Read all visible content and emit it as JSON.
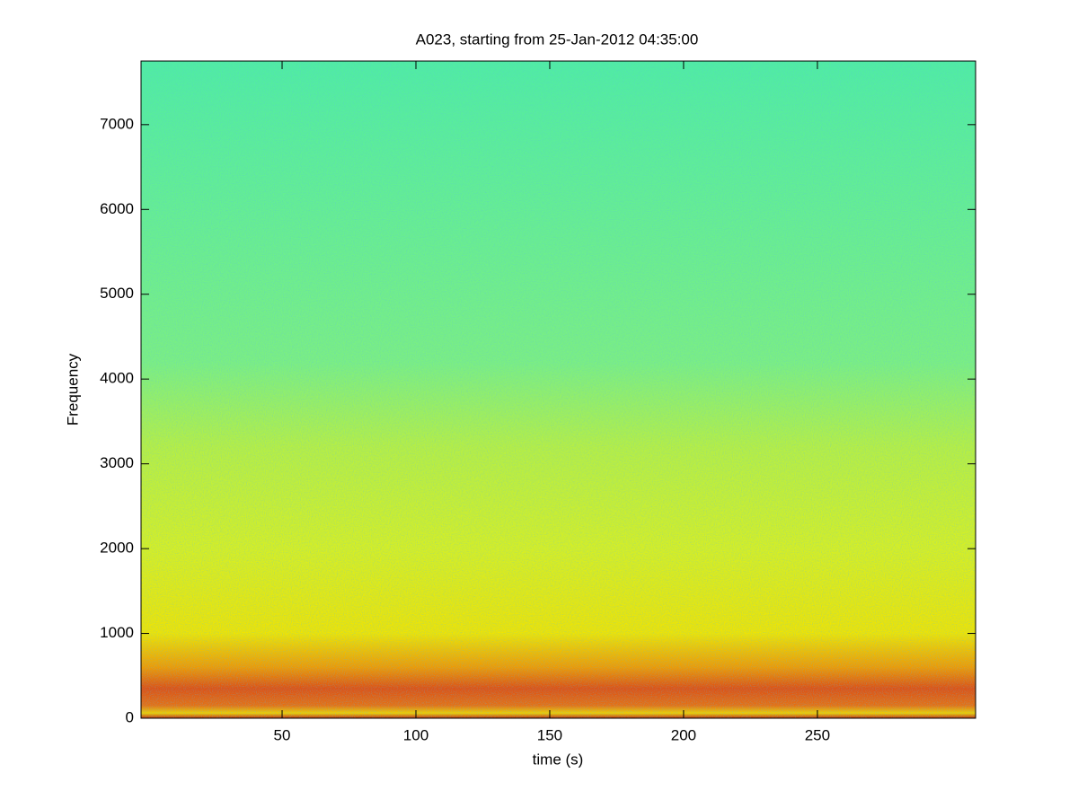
{
  "chart_data": {
    "type": "spectrogram",
    "title": "A023, starting from 25-Jan-2012 04:35:00",
    "x_label": "time (s)",
    "y_label": "Frequency",
    "xlim": [
      -2.7,
      309.1
    ],
    "xticks": [
      50,
      100,
      150,
      200,
      250
    ],
    "ylim": [
      0,
      7750
    ],
    "yticks": [
      0,
      1000,
      2000,
      3000,
      4000,
      5000,
      6000,
      7000
    ],
    "color_stops": [
      {
        "frequency": 0,
        "color": "#c83010"
      },
      {
        "frequency": 60,
        "color": "#f0d000"
      },
      {
        "frequency": 150,
        "color": "#e87010"
      },
      {
        "frequency": 350,
        "color": "#e05010"
      },
      {
        "frequency": 600,
        "color": "#f09a00"
      },
      {
        "frequency": 1000,
        "color": "#f0e400"
      },
      {
        "frequency": 2000,
        "color": "#d8f020"
      },
      {
        "frequency": 3200,
        "color": "#b8f040"
      },
      {
        "frequency": 4200,
        "color": "#7cf080"
      },
      {
        "frequency": 7750,
        "color": "#50eea0"
      }
    ]
  }
}
